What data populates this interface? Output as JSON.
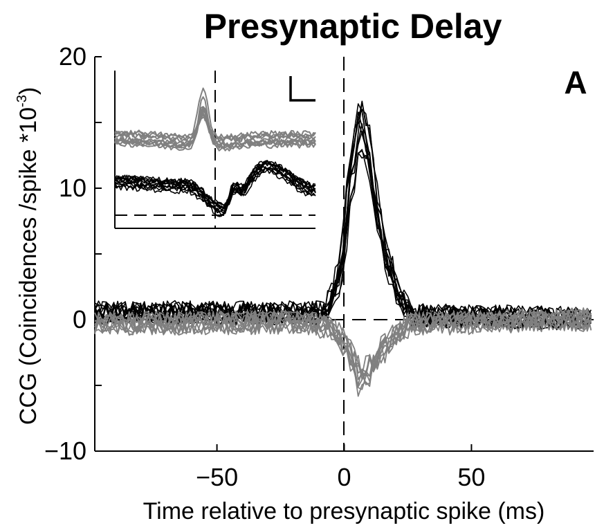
{
  "chart_data": {
    "type": "line",
    "title": "Presynaptic Delay",
    "panel_label": "A",
    "xlabel": "Time relative to presynaptic spike (ms)",
    "ylabel_main": "CCG (Coincidences /spike *10",
    "ylabel_exp": "-3",
    "ylabel_close": ")",
    "xlim": [
      -98,
      98
    ],
    "ylim": [
      -10,
      20
    ],
    "x_ticks": [
      -50,
      0,
      50
    ],
    "x_tick_labels": [
      "−50",
      "0",
      "50"
    ],
    "y_ticks": [
      -10,
      -5,
      0,
      5,
      10,
      15,
      20
    ],
    "y_tick_labels": [
      "−10",
      "",
      "0",
      "",
      "10",
      "",
      "20"
    ],
    "grid": false,
    "reference_lines": {
      "zero_time_ms": 0,
      "baseline_value": 0,
      "style": "dashed"
    },
    "series": [
      {
        "color": "#000000",
        "count": 12,
        "shape": {
          "x": [
            -98,
            -15,
            -8,
            -2,
            3,
            6,
            9,
            13,
            17,
            22,
            27,
            98
          ],
          "y": [
            0.5,
            0.5,
            0.5,
            3,
            11,
            14.5,
            13,
            8,
            4,
            1.5,
            0.3,
            0.1
          ]
        }
      },
      {
        "color": "#808080",
        "count": 10,
        "shape": {
          "x": [
            -98,
            -15,
            -8,
            -2,
            3,
            6,
            9,
            14,
            20,
            27,
            98
          ],
          "y": [
            -0.3,
            -0.2,
            -0.5,
            -1.2,
            -3,
            -4.5,
            -4,
            -2.5,
            -1.2,
            -0.3,
            0
          ]
        }
      }
    ],
    "inset": {
      "series": [
        {
          "color": "#000000",
          "count": 12,
          "shape": {
            "x": [
              0,
              0.35,
              0.55,
              0.75,
              1.0
            ],
            "y": [
              0.3,
              0.28,
              0.12,
              0.4,
              0.25
            ]
          },
          "peak": {
            "x": 0.6,
            "height": 0.28
          }
        },
        {
          "color": "#808080",
          "count": 10,
          "shape": {
            "x": [
              0,
              0.4,
              0.55,
              0.75,
              1.0
            ],
            "y": [
              0.58,
              0.55,
              0.55,
              0.57,
              0.57
            ]
          },
          "peak": {
            "x": 0.44,
            "height": 0.8
          }
        }
      ],
      "zero_time_fraction": 0.5,
      "baseline_fraction": 0.08
    }
  }
}
